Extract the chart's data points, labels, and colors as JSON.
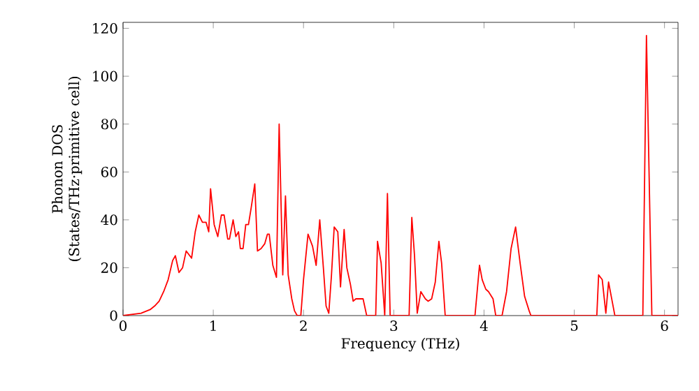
{
  "chart_data": {
    "type": "line",
    "xlabel": "Frequency (THz)",
    "ylabel": "Phonon DOS (States/THz·primitive cell)",
    "xlim": [
      0,
      6.15
    ],
    "ylim": [
      0,
      122.5
    ],
    "xticks": [
      0,
      1,
      2,
      3,
      4,
      5,
      6
    ],
    "yticks": [
      0,
      20,
      40,
      60,
      80,
      100,
      120
    ],
    "grid": false,
    "marker": "none",
    "line_style": "solid",
    "series": [
      {
        "color": "#ff0000",
        "x": [
          0,
          0.2,
          0.3,
          0.35,
          0.4,
          0.45,
          0.5,
          0.55,
          0.58,
          0.62,
          0.66,
          0.7,
          0.76,
          0.8,
          0.84,
          0.88,
          0.92,
          0.95,
          0.97,
          1.01,
          1.05,
          1.09,
          1.12,
          1.16,
          1.18,
          1.22,
          1.25,
          1.28,
          1.3,
          1.33,
          1.36,
          1.39,
          1.42,
          1.46,
          1.49,
          1.53,
          1.57,
          1.6,
          1.62,
          1.66,
          1.7,
          1.73,
          1.77,
          1.8,
          1.83,
          1.87,
          1.9,
          1.93,
          1.97,
          2.0,
          2.05,
          2.1,
          2.14,
          2.18,
          2.22,
          2.25,
          2.28,
          2.31,
          2.34,
          2.38,
          2.41,
          2.45,
          2.48,
          2.52,
          2.55,
          2.58,
          2.62,
          2.66,
          2.7,
          2.8,
          2.82,
          2.86,
          2.9,
          2.93,
          2.96,
          3.17,
          3.2,
          3.23,
          3.26,
          3.3,
          3.35,
          3.38,
          3.42,
          3.46,
          3.5,
          3.53,
          3.57,
          3.9,
          3.95,
          3.98,
          4.02,
          4.05,
          4.1,
          4.13,
          4.2,
          4.25,
          4.3,
          4.35,
          4.4,
          4.45,
          4.5,
          4.52,
          5.25,
          5.27,
          5.31,
          5.35,
          5.38,
          5.42,
          5.45,
          5.76,
          5.8,
          5.84,
          5.86,
          6.15
        ],
        "values": [
          0,
          1,
          2.5,
          4,
          6,
          10,
          15,
          23,
          25,
          18,
          20,
          27,
          24,
          35,
          42,
          39,
          39,
          35,
          53,
          38,
          33,
          42,
          42,
          32,
          32,
          40,
          33,
          35,
          28,
          28,
          38,
          38,
          45,
          55,
          27,
          28,
          30,
          34,
          34,
          21,
          16,
          80,
          17,
          50,
          17,
          7,
          2,
          0,
          0,
          15,
          34,
          29,
          21,
          40,
          20,
          4,
          1,
          17,
          37,
          35,
          12,
          36,
          20,
          13,
          6,
          7,
          7,
          7,
          0,
          0,
          31,
          22,
          0,
          51,
          0,
          0,
          41,
          25,
          1,
          10,
          7,
          6,
          7,
          14,
          31,
          22,
          0,
          0,
          21,
          15,
          11,
          10,
          7,
          0,
          0,
          10,
          28,
          37,
          22,
          8,
          2,
          0,
          0,
          17,
          15,
          1,
          14,
          6,
          0,
          0,
          117,
          38,
          0,
          0
        ]
      }
    ]
  }
}
